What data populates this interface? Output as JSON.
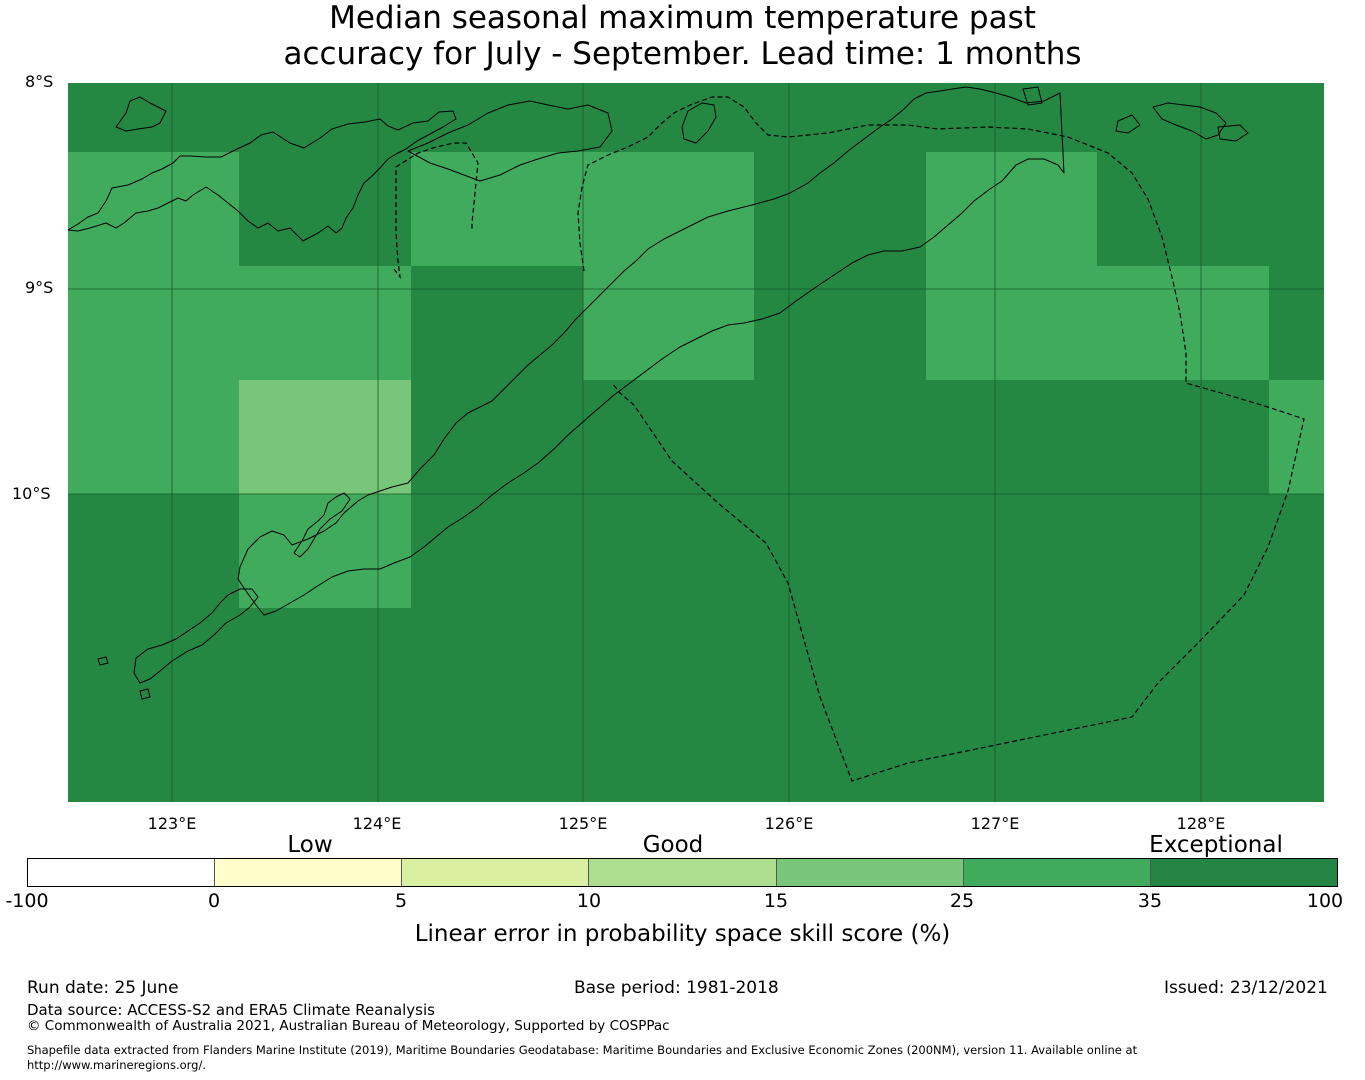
{
  "title": {
    "line1": "Median seasonal maximum temperature past",
    "line2": "accuracy for July - September. Lead time: 1 months"
  },
  "map": {
    "lat_labels": [
      "8°S",
      "9°S",
      "10°S"
    ],
    "lon_labels": [
      "123°E",
      "124°E",
      "125°E",
      "126°E",
      "127°E",
      "128°E"
    ],
    "lon_range": [
      122.5,
      128.6
    ],
    "lat_range": [
      -8.0,
      -11.5
    ],
    "grid_resolution_deg": [
      0.833,
      0.556
    ],
    "skill_grid_categories": [
      [
        "exceptional",
        "exceptional",
        "exceptional",
        "exceptional",
        "exceptional",
        "exceptional",
        "exceptional",
        "exceptional"
      ],
      [
        "very_good",
        "exceptional",
        "very_good",
        "very_good",
        "exceptional",
        "very_good",
        "exceptional",
        "exceptional"
      ],
      [
        "very_good",
        "very_good",
        "exceptional",
        "very_good",
        "exceptional",
        "very_good",
        "very_good",
        "exceptional"
      ],
      [
        "very_good",
        "good",
        "exceptional",
        "exceptional",
        "exceptional",
        "exceptional",
        "exceptional",
        "very_good"
      ],
      [
        "exceptional",
        "very_good",
        "exceptional",
        "exceptional",
        "exceptional",
        "exceptional",
        "exceptional",
        "exceptional"
      ],
      [
        "exceptional",
        "exceptional",
        "exceptional",
        "exceptional",
        "exceptional",
        "exceptional",
        "exceptional",
        "exceptional"
      ],
      [
        "exceptional",
        "exceptional",
        "exceptional",
        "exceptional",
        "exceptional",
        "exceptional",
        "exceptional",
        "exceptional"
      ]
    ],
    "colors": {
      "exceptional": "#248843",
      "very_good": "#41ab5d",
      "good": "#78c679",
      "gridline": "#1a5a2c",
      "coastline": "#000000"
    }
  },
  "legend": {
    "category_labels": [
      "Low",
      "Good",
      "Exceptional"
    ],
    "tick_labels": [
      "-100",
      "0",
      "5",
      "10",
      "15",
      "25",
      "35",
      "100"
    ],
    "bins": [
      {
        "from": -100,
        "to": 0,
        "color": "#ffffff"
      },
      {
        "from": 0,
        "to": 5,
        "color": "#ffffcc"
      },
      {
        "from": 5,
        "to": 10,
        "color": "#d9f0a3"
      },
      {
        "from": 10,
        "to": 15,
        "color": "#addd8e"
      },
      {
        "from": 15,
        "to": 25,
        "color": "#78c679"
      },
      {
        "from": 25,
        "to": 35,
        "color": "#41ab5d"
      },
      {
        "from": 35,
        "to": 100,
        "color": "#238443"
      }
    ],
    "label": "Linear error in probability space skill score (%)"
  },
  "footer": {
    "run_date": "Run date: 25 June",
    "base_period": "Base period: 1981-2018",
    "issued": "Issued: 23/12/2021",
    "data_source": "Data source: ACCESS-S2 and ERA5 Climate Reanalysis",
    "copyright": "© Commonwealth of Australia 2021, Australian Bureau of Meteorology, Supported by COSPPac",
    "shapefile_line1": "Shapefile data extracted from Flanders Marine Institute (2019), Maritime Boundaries Geodatabase: Maritime Boundaries and Exclusive Economic Zones (200NM), version 11. Available online at",
    "shapefile_line2": "http://www.marineregions.org/."
  }
}
